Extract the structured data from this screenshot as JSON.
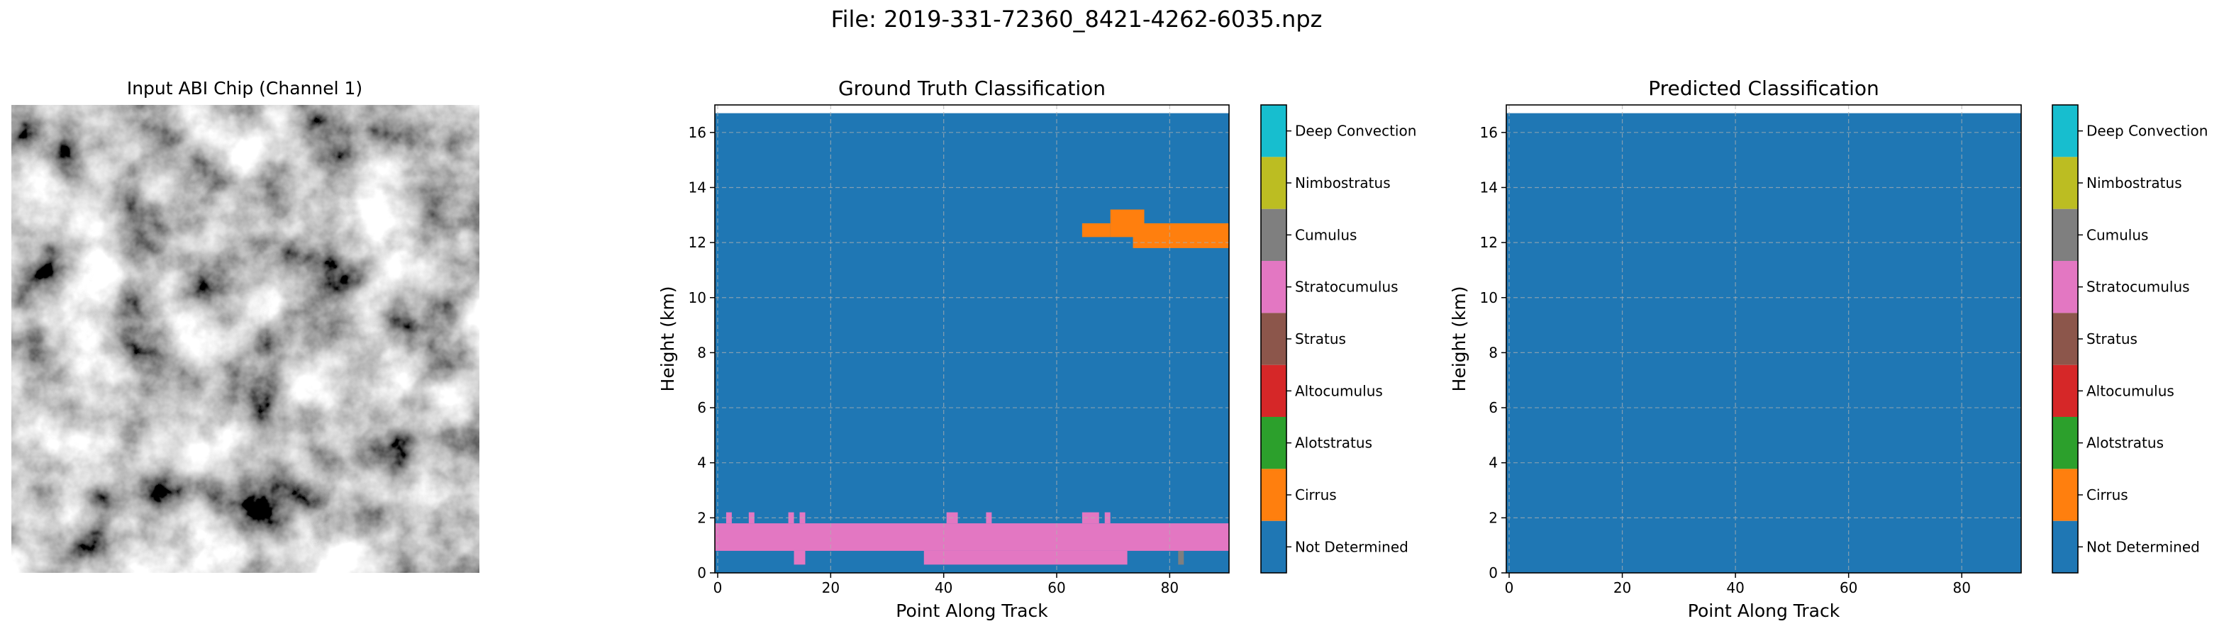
{
  "figure": {
    "suptitle": "File: 2019-331-72360_8421-4262-6035.npz"
  },
  "colors": {
    "not_determined": "#1f77b4",
    "cirrus": "#ff7f0e",
    "alotstratus": "#2ca02c",
    "altocumulus": "#d62728",
    "stratus": "#8c564b",
    "stratocumulus": "#e377c2",
    "cumulus": "#7f7f7f",
    "nimbostratus": "#bcbd22",
    "deep_convection": "#17becf",
    "grid": "#b0b0b0"
  },
  "input_panel": {
    "title": "Input ABI Chip (Channel 1)"
  },
  "chart_data": [
    {
      "type": "heatmap",
      "title": "Ground Truth Classification",
      "xlabel": "Point Along Track",
      "ylabel": "Height (km)",
      "xlim": [
        -0.5,
        90.5
      ],
      "ylim": [
        0,
        17
      ],
      "xticks": [
        "0",
        "20",
        "40",
        "60",
        "80"
      ],
      "yticks": [
        "0",
        "2",
        "4",
        "6",
        "8",
        "10",
        "12",
        "14",
        "16"
      ],
      "grid": true,
      "background_class": "Not Determined",
      "data_top_km": 16.7,
      "regions": [
        {
          "class": "Cirrus",
          "x": [
            64.5,
            69.5
          ],
          "y": [
            12.2,
            12.7
          ]
        },
        {
          "class": "Cirrus",
          "x": [
            69.5,
            75.5
          ],
          "y": [
            12.2,
            13.2
          ]
        },
        {
          "class": "Cirrus",
          "x": [
            73.5,
            90.5
          ],
          "y": [
            11.8,
            12.7
          ]
        },
        {
          "class": "Stratocumulus",
          "x": [
            -0.5,
            90.5
          ],
          "y": [
            0.8,
            1.8
          ]
        },
        {
          "class": "Stratocumulus",
          "x": [
            1.5,
            2.5
          ],
          "y": [
            1.8,
            2.2
          ]
        },
        {
          "class": "Stratocumulus",
          "x": [
            5.5,
            6.5
          ],
          "y": [
            1.8,
            2.2
          ]
        },
        {
          "class": "Stratocumulus",
          "x": [
            12.5,
            13.5
          ],
          "y": [
            1.8,
            2.2
          ]
        },
        {
          "class": "Stratocumulus",
          "x": [
            14.5,
            15.5
          ],
          "y": [
            1.8,
            2.2
          ]
        },
        {
          "class": "Stratocumulus",
          "x": [
            13.5,
            15.5
          ],
          "y": [
            0.3,
            0.8
          ]
        },
        {
          "class": "Stratocumulus",
          "x": [
            40.5,
            42.5
          ],
          "y": [
            1.8,
            2.2
          ]
        },
        {
          "class": "Stratocumulus",
          "x": [
            47.5,
            48.5
          ],
          "y": [
            1.8,
            2.2
          ]
        },
        {
          "class": "Stratocumulus",
          "x": [
            36.5,
            72.5
          ],
          "y": [
            0.3,
            0.8
          ]
        },
        {
          "class": "Stratocumulus",
          "x": [
            64.5,
            67.5
          ],
          "y": [
            1.8,
            2.2
          ]
        },
        {
          "class": "Stratocumulus",
          "x": [
            68.5,
            69.5
          ],
          "y": [
            1.8,
            2.2
          ]
        },
        {
          "class": "Cumulus",
          "x": [
            81.5,
            82.5
          ],
          "y": [
            0.3,
            0.8
          ]
        }
      ],
      "colorbar": [
        "Not Determined",
        "Cirrus",
        "Alotstratus",
        "Altocumulus",
        "Stratus",
        "Stratocumulus",
        "Cumulus",
        "Nimbostratus",
        "Deep Convection"
      ]
    },
    {
      "type": "heatmap",
      "title": "Predicted Classification",
      "xlabel": "Point Along Track",
      "ylabel": "Height (km)",
      "xlim": [
        -0.5,
        90.5
      ],
      "ylim": [
        0,
        17
      ],
      "xticks": [
        "0",
        "20",
        "40",
        "60",
        "80"
      ],
      "yticks": [
        "0",
        "2",
        "4",
        "6",
        "8",
        "10",
        "12",
        "14",
        "16"
      ],
      "grid": true,
      "background_class": "Not Determined",
      "data_top_km": 16.7,
      "regions": [],
      "colorbar": [
        "Not Determined",
        "Cirrus",
        "Alotstratus",
        "Altocumulus",
        "Stratus",
        "Stratocumulus",
        "Cumulus",
        "Nimbostratus",
        "Deep Convection"
      ]
    }
  ]
}
